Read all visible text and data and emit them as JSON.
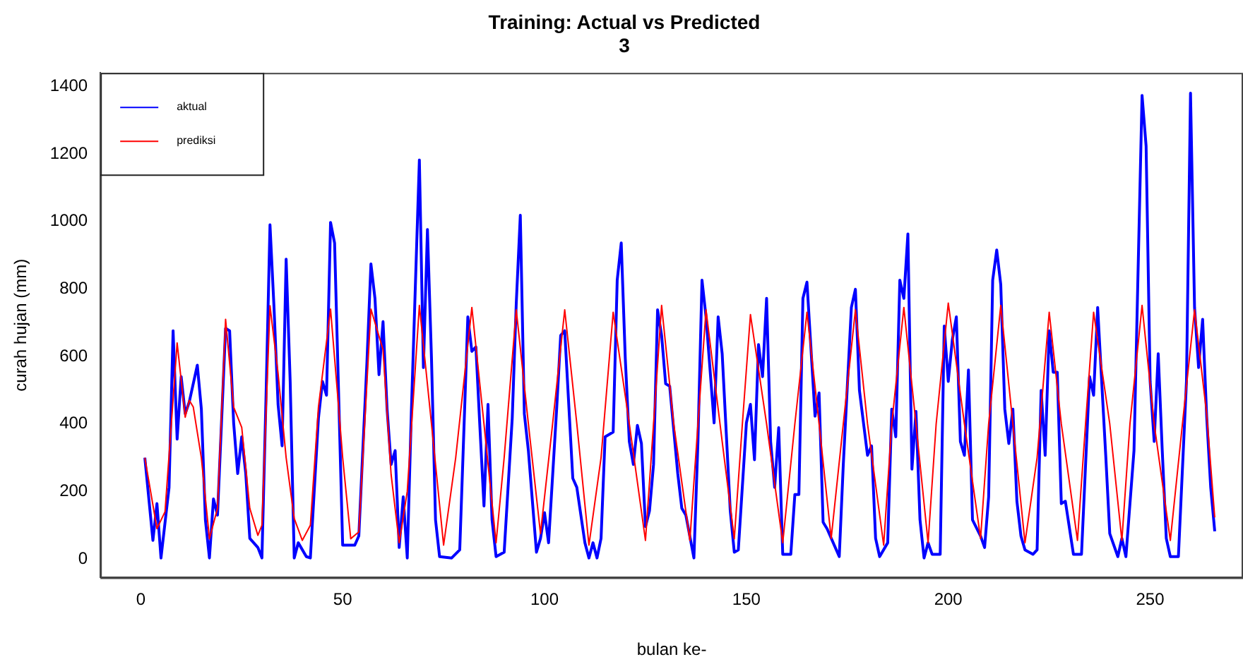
{
  "chart_data": {
    "type": "line",
    "title": "Training: Actual vs Predicted",
    "subtitle": "3",
    "xlabel": "bulan ke-",
    "ylabel": "curah hujan (mm)",
    "xlim": [
      -10,
      273
    ],
    "xticks": [
      0,
      50,
      100,
      150,
      200,
      250
    ],
    "ylim": [
      -55,
      1440
    ],
    "yticks": [
      0,
      200,
      400,
      600,
      800,
      1000,
      1200,
      1400
    ],
    "grid": false,
    "legend": "top left",
    "marker": "none",
    "line_style": "solid",
    "series": [
      {
        "name": "aktual",
        "color": "#0000ff",
        "x": [
          1,
          3,
          4,
          5,
          7,
          8,
          9,
          10,
          11,
          12,
          14,
          15,
          16,
          17,
          18,
          19,
          21,
          22,
          23,
          24,
          25,
          26,
          27,
          29,
          30,
          31,
          32,
          33,
          34,
          35,
          36,
          37,
          38,
          39,
          41,
          42,
          44,
          45,
          46,
          47,
          48,
          50,
          53,
          54,
          56,
          57,
          58,
          59,
          60,
          61,
          62,
          63,
          64,
          65,
          66,
          67,
          69,
          70,
          71,
          72,
          73,
          74,
          77,
          79,
          81,
          82,
          83,
          84,
          85,
          86,
          87,
          88,
          90,
          92,
          93,
          94,
          95,
          96,
          98,
          99,
          100,
          101,
          103,
          104,
          105,
          107,
          108,
          110,
          111,
          112,
          113,
          114,
          115,
          117,
          118,
          119,
          120,
          121,
          122,
          123,
          124,
          125,
          126,
          127,
          128,
          129,
          130,
          131,
          133,
          134,
          135,
          137,
          138,
          139,
          140,
          142,
          143,
          144,
          146,
          147,
          148,
          150,
          151,
          152,
          153,
          154,
          155,
          156,
          157,
          158,
          159,
          161,
          162,
          163,
          164,
          165,
          167,
          168,
          169,
          170,
          173,
          174,
          176,
          177,
          178,
          180,
          181,
          182,
          183,
          185,
          186,
          187,
          188,
          189,
          190,
          191,
          192,
          193,
          194,
          195,
          196,
          198,
          199,
          200,
          201,
          202,
          203,
          204,
          205,
          206,
          208,
          209,
          210,
          211,
          212,
          213,
          214,
          215,
          216,
          217,
          218,
          219,
          221,
          222,
          223,
          224,
          225,
          226,
          227,
          228,
          229,
          231,
          233,
          235,
          236,
          237,
          239,
          240,
          242,
          243,
          244,
          246,
          248,
          249,
          250,
          251,
          252,
          253,
          254,
          255,
          257,
          259,
          260,
          261,
          262,
          263,
          264,
          265,
          266
        ],
        "values": [
          300,
          55,
          164,
          3,
          212,
          676,
          355,
          540,
          430,
          465,
          574,
          444,
          116,
          3,
          178,
          130,
          683,
          676,
          403,
          253,
          362,
          253,
          61,
          34,
          3,
          471,
          990,
          744,
          458,
          335,
          888,
          526,
          3,
          48,
          7,
          3,
          417,
          526,
          485,
          997,
          936,
          41,
          41,
          68,
          580,
          874,
          772,
          546,
          703,
          444,
          280,
          321,
          34,
          184,
          3,
          430,
          1182,
          567,
          976,
          594,
          116,
          7,
          3,
          27,
          717,
          615,
          628,
          389,
          157,
          458,
          116,
          7,
          20,
          417,
          758,
          1018,
          430,
          321,
          20,
          61,
          137,
          48,
          444,
          662,
          676,
          239,
          212,
          48,
          3,
          48,
          3,
          61,
          362,
          376,
          826,
          936,
          594,
          348,
          280,
          396,
          342,
          96,
          143,
          280,
          738,
          662,
          519,
          512,
          253,
          150,
          130,
          3,
          348,
          826,
          717,
          403,
          717,
          608,
          143,
          20,
          27,
          403,
          458,
          294,
          635,
          540,
          772,
          348,
          212,
          389,
          14,
          14,
          191,
          191,
          772,
          820,
          423,
          492,
          109,
          89,
          7,
          280,
          745,
          799,
          499,
          307,
          335,
          61,
          7,
          48,
          444,
          362,
          826,
          772,
          963,
          266,
          437,
          116,
          3,
          48,
          14,
          14,
          690,
          526,
          649,
          717,
          348,
          307,
          560,
          116,
          68,
          34,
          184,
          826,
          915,
          813,
          444,
          342,
          444,
          171,
          68,
          27,
          14,
          27,
          499,
          307,
          676,
          553,
          553,
          164,
          171,
          14,
          14,
          540,
          485,
          745,
          307,
          75,
          7,
          61,
          7,
          321,
          1373,
          1223,
          526,
          348,
          608,
          321,
          61,
          7,
          7,
          526,
          1380,
          745,
          567,
          710,
          423,
          212,
          82
        ]
      },
      {
        "name": "prediksi",
        "color": "#ff0000",
        "x": [
          1,
          4,
          6,
          9,
          11,
          12,
          13,
          15,
          17,
          19,
          21,
          23,
          25,
          27,
          29,
          30,
          32,
          34,
          36,
          38,
          40,
          42,
          44,
          47,
          49,
          50,
          52,
          54,
          57,
          60,
          62,
          64,
          66,
          69,
          72,
          75,
          78,
          82,
          85,
          88,
          90,
          93,
          96,
          99,
          102,
          105,
          108,
          111,
          114,
          117,
          121,
          125,
          127,
          129,
          132,
          136,
          138,
          140,
          144,
          147,
          149,
          151,
          155,
          159,
          162,
          165,
          168,
          171,
          174,
          177,
          180,
          184,
          186,
          189,
          192,
          195,
          197,
          200,
          204,
          208,
          210,
          213,
          216,
          219,
          222,
          225,
          228,
          232,
          234,
          236,
          240,
          243,
          245,
          248,
          251,
          255,
          258,
          261,
          264,
          266
        ],
        "values": [
          300,
          90,
          140,
          640,
          420,
          470,
          450,
          300,
          60,
          150,
          710,
          450,
          390,
          150,
          70,
          100,
          750,
          550,
          300,
          120,
          55,
          100,
          450,
          740,
          450,
          300,
          60,
          80,
          740,
          620,
          250,
          48,
          200,
          751,
          400,
          41,
          300,
          745,
          400,
          48,
          300,
          738,
          400,
          75,
          400,
          738,
          400,
          41,
          300,
          731,
          400,
          55,
          400,
          751,
          400,
          55,
          400,
          738,
          348,
          60,
          400,
          724,
          400,
          48,
          400,
          731,
          400,
          61,
          400,
          738,
          400,
          41,
          400,
          745,
          400,
          48,
          400,
          758,
          400,
          61,
          400,
          751,
          400,
          48,
          300,
          731,
          400,
          55,
          400,
          731,
          400,
          55,
          400,
          751,
          400,
          55,
          400,
          738,
          430,
          123
        ]
      }
    ]
  }
}
